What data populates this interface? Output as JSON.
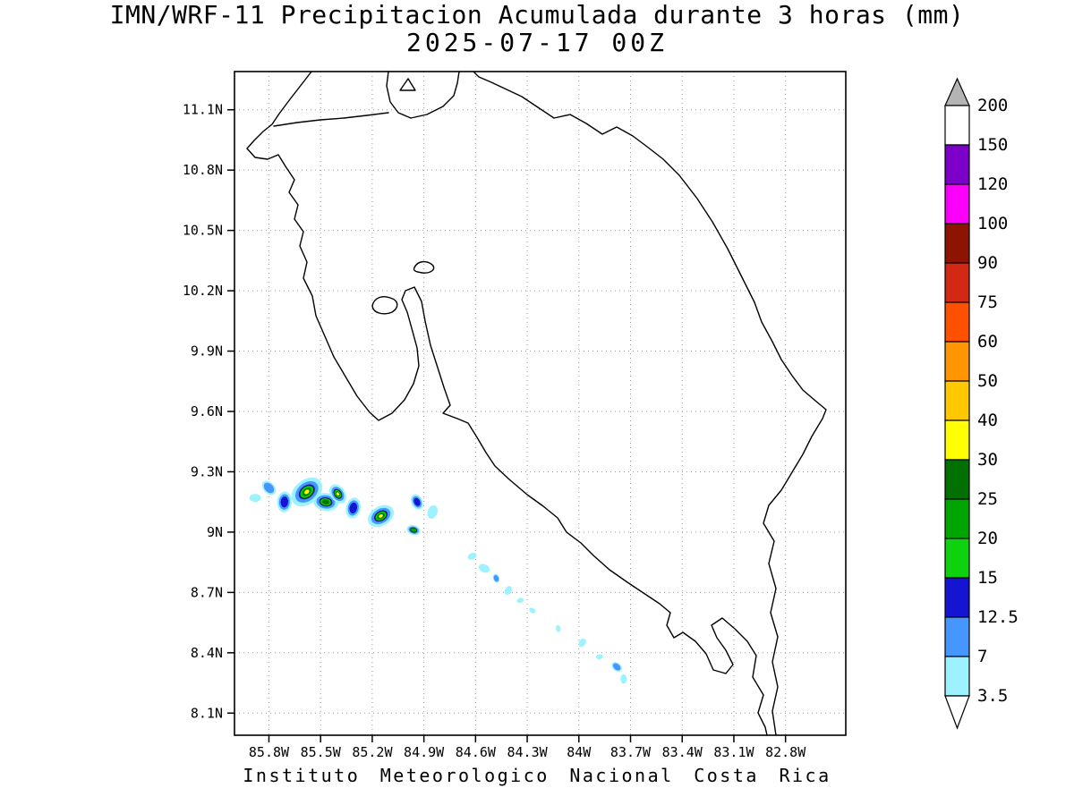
{
  "header": {
    "title": "IMN/WRF-11 Precipitacion Acumulada durante 3 horas (mm)",
    "datetime": "2025-07-17 00Z"
  },
  "footer": {
    "caption": "Instituto Meteorologico Nacional Costa Rica"
  },
  "axes": {
    "lon_ticks": [
      "85.8W",
      "85.5W",
      "85.2W",
      "84.9W",
      "84.6W",
      "84.3W",
      "84W",
      "83.7W",
      "83.4W",
      "83.1W",
      "82.8W"
    ],
    "lat_ticks": [
      "11.1N",
      "10.8N",
      "10.5N",
      "10.2N",
      "9.9N",
      "9.6N",
      "9.3N",
      "9N",
      "8.7N",
      "8.4N",
      "8.1N"
    ]
  },
  "colorbar": {
    "labels": [
      "200",
      "150",
      "120",
      "100",
      "90",
      "75",
      "60",
      "50",
      "40",
      "30",
      "25",
      "20",
      "15",
      "12.5",
      "7",
      "3.5"
    ],
    "segment_colors_top_to_bottom": [
      "#ffffff",
      "#7d00c8",
      "#fa00fa",
      "#8c1400",
      "#d22814",
      "#ff5000",
      "#ff9600",
      "#ffc800",
      "#ffff00",
      "#007000",
      "#00a500",
      "#0fd20f",
      "#1414d2",
      "#4596ff",
      "#9cf2ff"
    ],
    "top_arrow_color": "#b4b4b4",
    "bottom_arrow_color": "#ffffff"
  },
  "palette": {
    "3.5": "#9cf2ff",
    "7": "#4596ff",
    "12.5": "#1414d2",
    "15": "#0fd20f",
    "20": "#00a500",
    "25": "#007000",
    "30": "#ffff00"
  },
  "chart_data": {
    "type": "heatmap",
    "title": "IMN/WRF-11 Precipitacion Acumulada durante 3 horas (mm)",
    "subtitle": "2025-07-17 00Z",
    "units": "mm",
    "region": "Costa Rica",
    "lon_range_degW": [
      86.0,
      82.45
    ],
    "lat_range_degN": [
      7.99,
      11.29
    ],
    "contour_levels_mm": [
      3.5,
      7,
      12.5,
      15,
      20,
      25,
      30,
      40,
      50,
      60,
      75,
      90,
      100,
      120,
      150,
      200
    ],
    "grid": "dotted",
    "legend_position": "right-colorbar",
    "precip_cells": [
      {
        "lon": -85.88,
        "lat": 9.17,
        "max_mm": 3.5,
        "r": 5
      },
      {
        "lon": -85.8,
        "lat": 9.22,
        "max_mm": 7,
        "r": 7
      },
      {
        "lon": -85.71,
        "lat": 9.15,
        "max_mm": 12.5,
        "r": 9
      },
      {
        "lon": -85.58,
        "lat": 9.2,
        "max_mm": 40,
        "r": 15
      },
      {
        "lon": -85.47,
        "lat": 9.15,
        "max_mm": 25,
        "r": 11
      },
      {
        "lon": -85.4,
        "lat": 9.19,
        "max_mm": 30,
        "r": 9
      },
      {
        "lon": -85.31,
        "lat": 9.12,
        "max_mm": 12.5,
        "r": 9
      },
      {
        "lon": -85.15,
        "lat": 9.08,
        "max_mm": 40,
        "r": 12
      },
      {
        "lon": -84.96,
        "lat": 9.01,
        "max_mm": 20,
        "r": 6
      },
      {
        "lon": -84.94,
        "lat": 9.15,
        "max_mm": 12.5,
        "r": 7
      },
      {
        "lon": -84.85,
        "lat": 9.1,
        "max_mm": 3.5,
        "r": 6
      },
      {
        "lon": -84.62,
        "lat": 8.88,
        "max_mm": 3.5,
        "r": 4
      },
      {
        "lon": -84.55,
        "lat": 8.82,
        "max_mm": 3.5,
        "r": 5
      },
      {
        "lon": -84.48,
        "lat": 8.77,
        "max_mm": 7,
        "r": 4
      },
      {
        "lon": -84.41,
        "lat": 8.71,
        "max_mm": 3.5,
        "r": 4
      },
      {
        "lon": -84.34,
        "lat": 8.66,
        "max_mm": 3.5,
        "r": 3
      },
      {
        "lon": -84.27,
        "lat": 8.61,
        "max_mm": 3.5,
        "r": 3
      },
      {
        "lon": -84.12,
        "lat": 8.52,
        "max_mm": 3.5,
        "r": 3
      },
      {
        "lon": -83.98,
        "lat": 8.45,
        "max_mm": 3.5,
        "r": 4
      },
      {
        "lon": -83.88,
        "lat": 8.38,
        "max_mm": 3.5,
        "r": 3
      },
      {
        "lon": -83.78,
        "lat": 8.33,
        "max_mm": 7,
        "r": 5
      },
      {
        "lon": -83.74,
        "lat": 8.27,
        "max_mm": 3.5,
        "r": 4
      }
    ]
  }
}
